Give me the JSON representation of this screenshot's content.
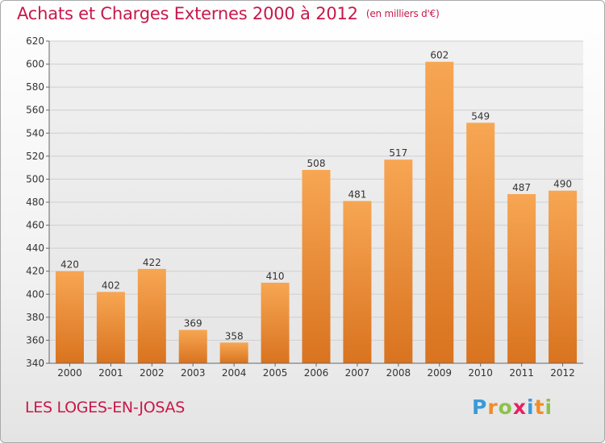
{
  "header": {
    "title": "Achats et Charges Externes 2000 à 2012",
    "unit": "(en milliers d'€)"
  },
  "footer": {
    "location": "LES LOGES-EN-JOSAS"
  },
  "logo": {
    "text": "Proxiti",
    "colors": [
      "#3a9ad9",
      "#f28c28",
      "#8bc34a",
      "#e91e63",
      "#3a9ad9",
      "#f28c28",
      "#8bc34a"
    ]
  },
  "chart_data": {
    "type": "bar",
    "title": "Achats et Charges Externes 2000 à 2012",
    "subtitle": "(en milliers d'€)",
    "categories": [
      "2000",
      "2001",
      "2002",
      "2003",
      "2004",
      "2005",
      "2006",
      "2007",
      "2008",
      "2009",
      "2010",
      "2011",
      "2012"
    ],
    "values": [
      420,
      402,
      422,
      369,
      358,
      410,
      508,
      481,
      517,
      602,
      549,
      487,
      490
    ],
    "ylim": [
      340,
      620
    ],
    "yticks": [
      340,
      360,
      380,
      400,
      420,
      440,
      460,
      480,
      500,
      520,
      540,
      560,
      580,
      600,
      620
    ],
    "grid": true,
    "bar_color_top": "#f7a653",
    "bar_color_bottom": "#d9731f"
  }
}
